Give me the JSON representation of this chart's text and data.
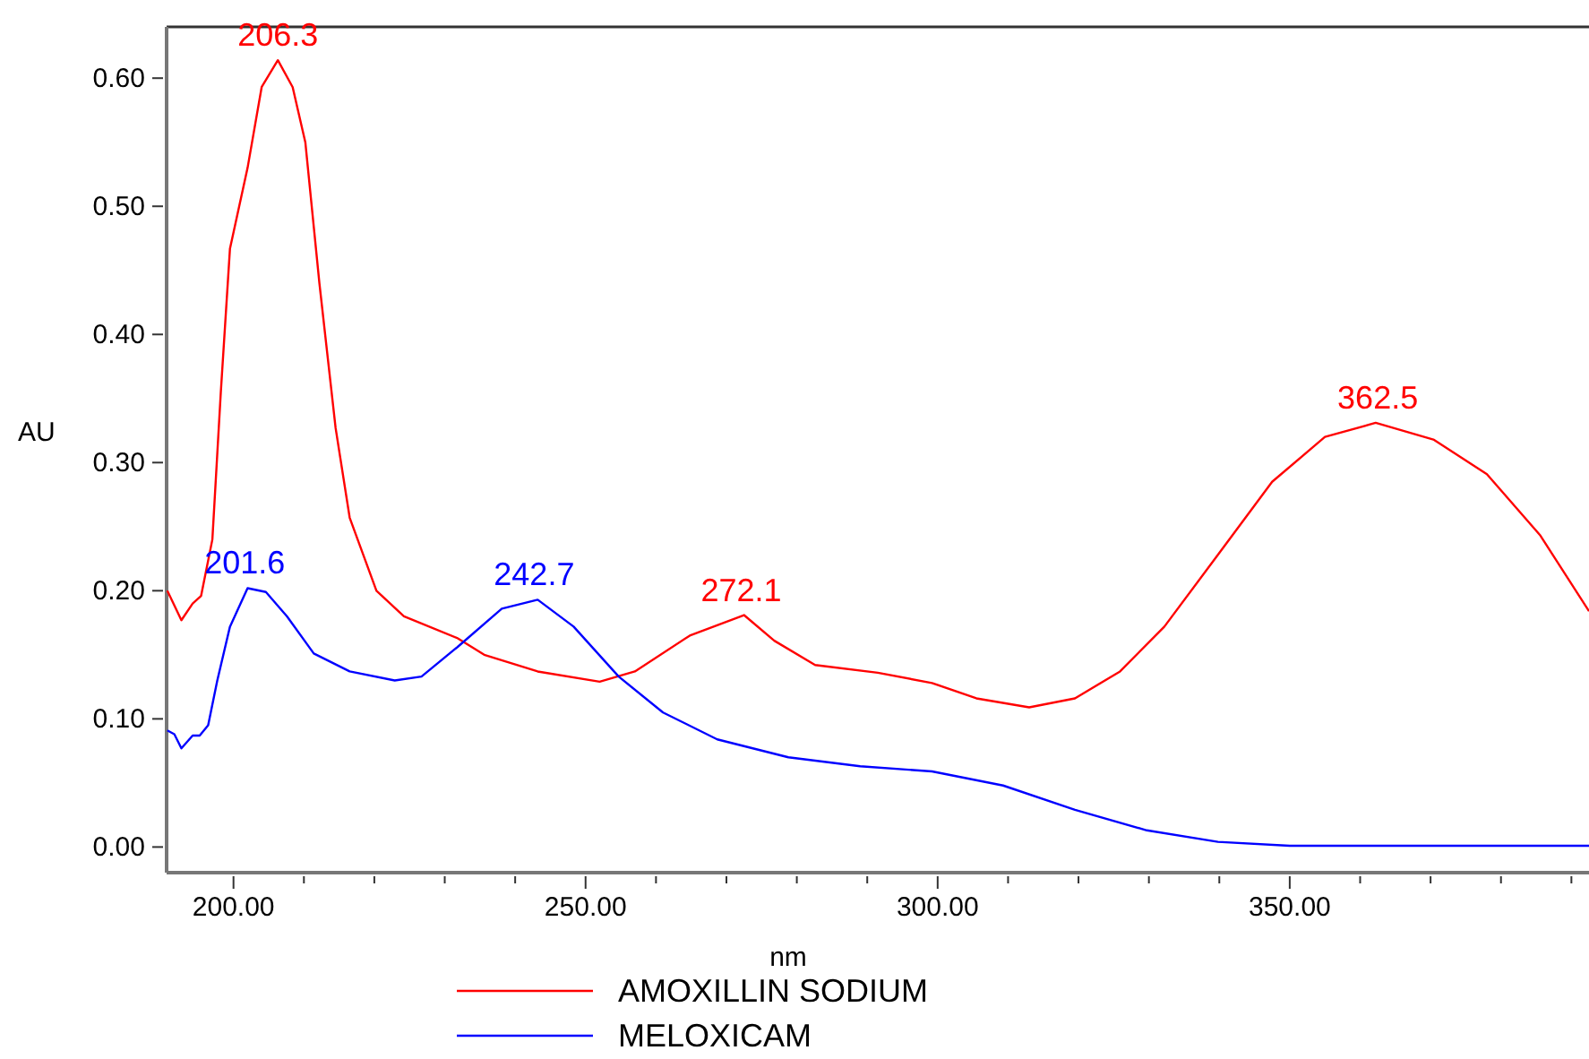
{
  "chart_data": {
    "type": "line",
    "xlabel": "nm",
    "ylabel": "AU",
    "xlim": [
      190.5,
      392.5
    ],
    "ylim": [
      -0.02,
      0.64
    ],
    "xticks": [
      {
        "value": 200,
        "label": "200.00"
      },
      {
        "value": 210,
        "label": null
      },
      {
        "value": 220,
        "label": null
      },
      {
        "value": 230,
        "label": null
      },
      {
        "value": 240,
        "label": null
      },
      {
        "value": 250,
        "label": "250.00"
      },
      {
        "value": 260,
        "label": null
      },
      {
        "value": 270,
        "label": null
      },
      {
        "value": 280,
        "label": null
      },
      {
        "value": 290,
        "label": null
      },
      {
        "value": 300,
        "label": "300.00"
      },
      {
        "value": 310,
        "label": null
      },
      {
        "value": 320,
        "label": null
      },
      {
        "value": 330,
        "label": null
      },
      {
        "value": 340,
        "label": null
      },
      {
        "value": 350,
        "label": "350.00"
      },
      {
        "value": 360,
        "label": null
      },
      {
        "value": 370,
        "label": null
      },
      {
        "value": 380,
        "label": null
      },
      {
        "value": 390,
        "label": null
      }
    ],
    "yticks": [
      {
        "value": 0,
        "label": "0.00"
      },
      {
        "value": 0.1,
        "label": "0.10"
      },
      {
        "value": 0.2,
        "label": "0.20"
      },
      {
        "value": 0.3,
        "label": "0.30"
      },
      {
        "value": 0.4,
        "label": "0.40"
      },
      {
        "value": 0.5,
        "label": "0.50"
      },
      {
        "value": 0.6,
        "label": "0.60"
      }
    ],
    "grid": false,
    "legend": "bottom",
    "marker": "none",
    "line_style": "solid",
    "series": [
      {
        "name": "AMOXILLIN SODIUM",
        "color": "#ff0000",
        "x": [
          190.6,
          192.6,
          194.2,
          195.4,
          197,
          198.2,
          199.5,
          202,
          204,
          206.3,
          208.4,
          210.2,
          212.2,
          214.5,
          216.5,
          220.3,
          224.2,
          231.8,
          235.6,
          243.2,
          252,
          257,
          264.8,
          272.5,
          276.8,
          282.6,
          291.5,
          299.2,
          305.5,
          313,
          319.5,
          325.9,
          332.2,
          339.8,
          347.5,
          355,
          362.2,
          370.4,
          378,
          385.6,
          392.5
        ],
        "values": [
          0.2,
          0.177,
          0.19,
          0.196,
          0.24,
          0.355,
          0.467,
          0.53,
          0.593,
          0.614,
          0.593,
          0.55,
          0.44,
          0.327,
          0.257,
          0.2,
          0.18,
          0.163,
          0.15,
          0.137,
          0.129,
          0.137,
          0.165,
          0.181,
          0.161,
          0.142,
          0.136,
          0.128,
          0.116,
          0.109,
          0.116,
          0.137,
          0.172,
          0.228,
          0.285,
          0.32,
          0.331,
          0.318,
          0.291,
          0.243,
          0.184
        ]
      },
      {
        "name": "MELOXICAM",
        "color": "#0000ff",
        "x": [
          190.6,
          191.6,
          192.6,
          194.2,
          195.2,
          196.4,
          197.7,
          199.5,
          202,
          204.6,
          207.6,
          211.4,
          216.5,
          222.9,
          226.7,
          231.8,
          238.1,
          243.2,
          248.3,
          254.7,
          261,
          268.7,
          278.8,
          289,
          299.2,
          309.3,
          319.5,
          329.7,
          339.8,
          350,
          392.5
        ],
        "values": [
          0.091,
          0.088,
          0.077,
          0.087,
          0.087,
          0.095,
          0.13,
          0.172,
          0.202,
          0.199,
          0.18,
          0.151,
          0.137,
          0.13,
          0.133,
          0.156,
          0.186,
          0.193,
          0.172,
          0.133,
          0.105,
          0.084,
          0.07,
          0.063,
          0.059,
          0.048,
          0.029,
          0.013,
          0.004,
          0.001,
          0.001
        ]
      }
    ],
    "annotations": [
      {
        "text": "206.3",
        "x": 206.3,
        "y": 0.614
      },
      {
        "text": "201.6",
        "x": 201.6,
        "y": 0.202
      },
      {
        "text": "242.7",
        "x": 242.7,
        "y": 0.193
      },
      {
        "text": "272.1",
        "x": 272.1,
        "y": 0.181
      },
      {
        "text": "362.5",
        "x": 362.5,
        "y": 0.331
      }
    ]
  }
}
